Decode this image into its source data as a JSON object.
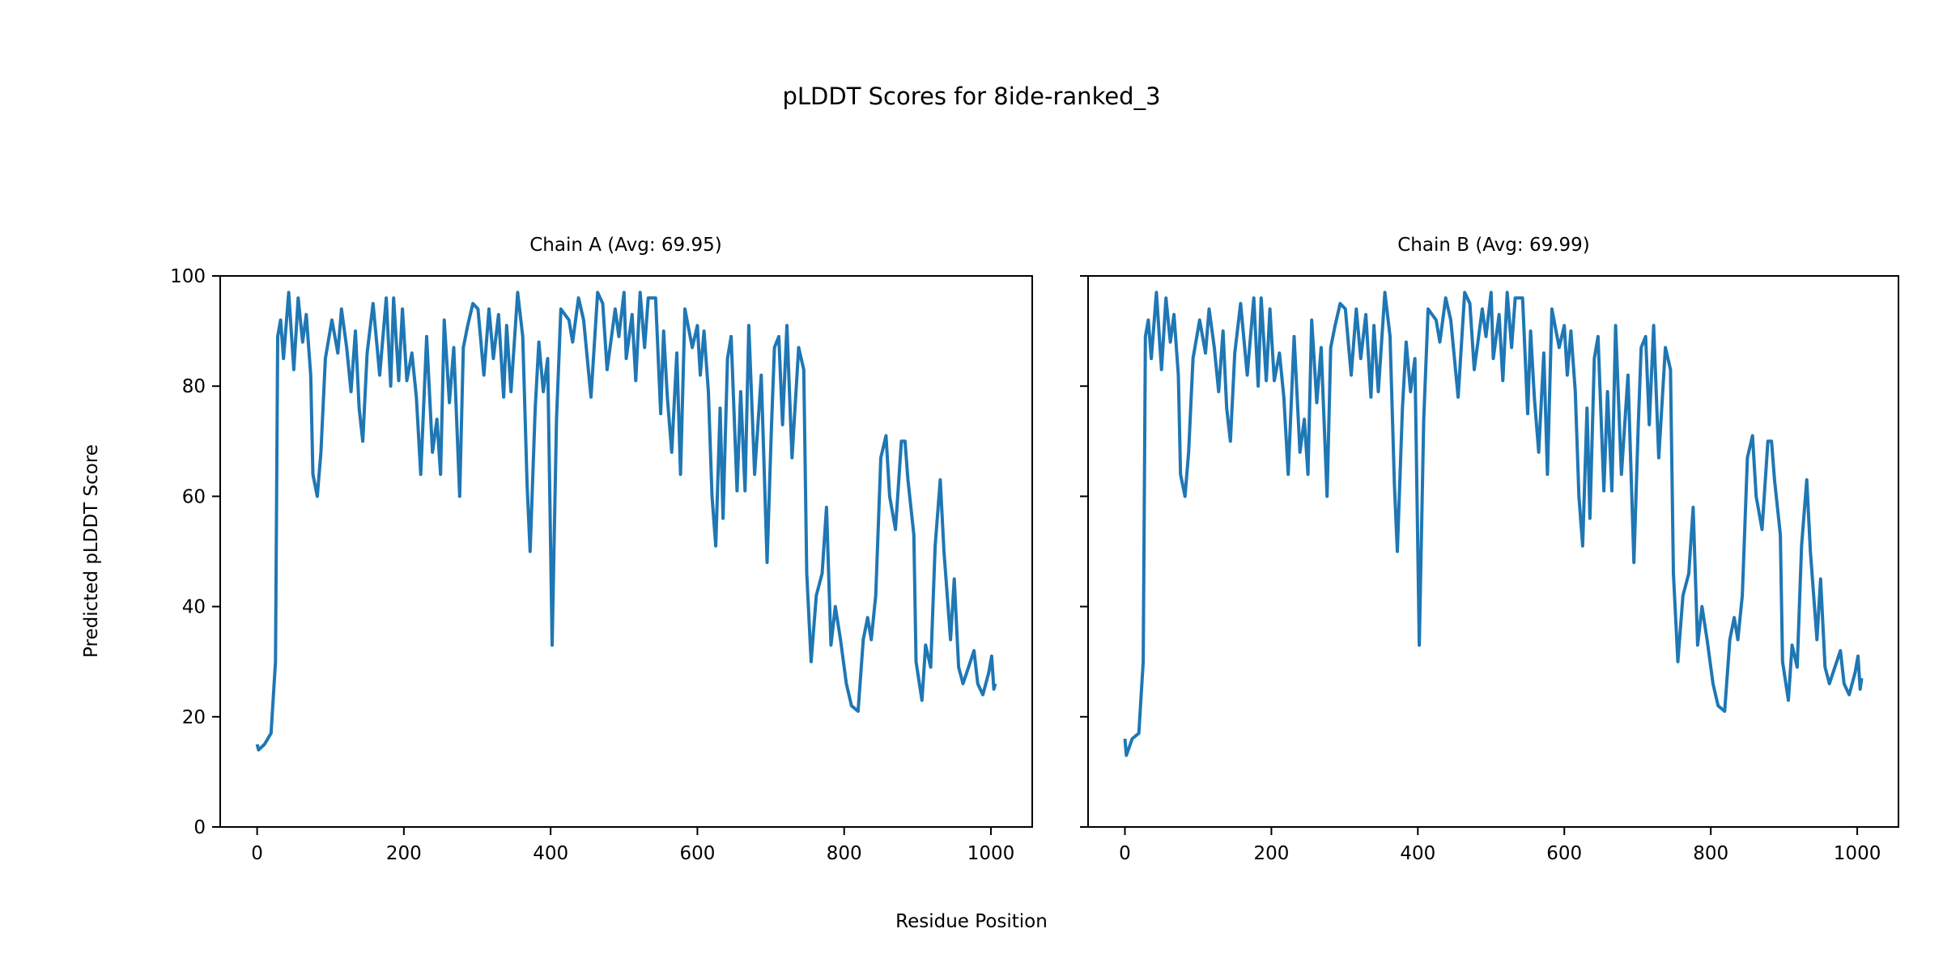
{
  "chart_data": {
    "type": "line",
    "title": "pLDDT Scores for 8ide-ranked_3",
    "xlabel": "Residue Position",
    "ylabel": "Predicted pLDDT Score",
    "line_color": "#1f77b4",
    "xlim": [
      -50.3,
      1056.3
    ],
    "ylim": [
      0,
      100
    ],
    "xticks": [
      0,
      200,
      400,
      600,
      800,
      1000
    ],
    "yticks": [
      0,
      20,
      40,
      60,
      80,
      100
    ],
    "panels": [
      {
        "title": "Chain A (Avg: 69.95)",
        "x": [
          0,
          2,
          10,
          19,
          25,
          28,
          32,
          36,
          43,
          50,
          56,
          62,
          67,
          73,
          76,
          82,
          87,
          93,
          102,
          110,
          115,
          122,
          128,
          134,
          139,
          144,
          150,
          158,
          167,
          176,
          182,
          186,
          193,
          198,
          204,
          211,
          217,
          223,
          231,
          239,
          245,
          250,
          255,
          262,
          268,
          276,
          281,
          287,
          294,
          301,
          309,
          316,
          322,
          329,
          336,
          340,
          346,
          355,
          362,
          368,
          372,
          379,
          384,
          390,
          396,
          402,
          408,
          414,
          425,
          430,
          438,
          445,
          455,
          464,
          471,
          477,
          488,
          493,
          500,
          503,
          511,
          516,
          522,
          528,
          533,
          543,
          550,
          554,
          559,
          565,
          572,
          577,
          583,
          593,
          600,
          604,
          609,
          615,
          620,
          625,
          631,
          635,
          641,
          646,
          654,
          659,
          665,
          670,
          678,
          687,
          695,
          701,
          705,
          711,
          716,
          722,
          729,
          738,
          745,
          749,
          755,
          762,
          770,
          776,
          782,
          788,
          795,
          803,
          810,
          819,
          826,
          832,
          837,
          843,
          850,
          857,
          862,
          870,
          878,
          883,
          887,
          895,
          898,
          906,
          911,
          918,
          924,
          931,
          936,
          945,
          950,
          956,
          962,
          967,
          977,
          982,
          989,
          997,
          1001,
          1004,
          1006
        ],
        "y": [
          15,
          14,
          15,
          17,
          30,
          89,
          92,
          85,
          97,
          83,
          96,
          88,
          93,
          82,
          64,
          60,
          68,
          85,
          92,
          86,
          94,
          87,
          79,
          90,
          76,
          70,
          86,
          95,
          82,
          96,
          80,
          96,
          81,
          94,
          81,
          86,
          78,
          64,
          89,
          68,
          74,
          64,
          92,
          77,
          87,
          60,
          87,
          91,
          95,
          94,
          82,
          94,
          85,
          93,
          78,
          91,
          79,
          97,
          89,
          62,
          50,
          76,
          88,
          79,
          85,
          33,
          74,
          94,
          92,
          88,
          96,
          92,
          78,
          97,
          95,
          83,
          94,
          89,
          97,
          85,
          93,
          81,
          97,
          87,
          96,
          96,
          75,
          90,
          78,
          68,
          86,
          64,
          94,
          87,
          91,
          82,
          90,
          79,
          60,
          51,
          76,
          56,
          85,
          89,
          61,
          79,
          61,
          91,
          64,
          82,
          48,
          73,
          87,
          89,
          73,
          91,
          67,
          87,
          83,
          46,
          30,
          42,
          46,
          58,
          33,
          40,
          34,
          26,
          22,
          21,
          34,
          38,
          34,
          42,
          67,
          71,
          60,
          54,
          70,
          70,
          63,
          53,
          30,
          23,
          33,
          29,
          51,
          63,
          50,
          34,
          45,
          29,
          26,
          28,
          32,
          26,
          24,
          28,
          31,
          25,
          26
        ]
      },
      {
        "title": "Chain B (Avg: 69.99)",
        "x": [
          0,
          2,
          10,
          19,
          25,
          28,
          32,
          36,
          43,
          50,
          56,
          62,
          67,
          73,
          76,
          82,
          87,
          93,
          102,
          110,
          115,
          122,
          128,
          134,
          139,
          144,
          150,
          158,
          167,
          176,
          182,
          186,
          193,
          198,
          204,
          211,
          217,
          223,
          231,
          239,
          245,
          250,
          255,
          262,
          268,
          276,
          281,
          287,
          294,
          301,
          309,
          316,
          322,
          329,
          336,
          340,
          346,
          355,
          362,
          368,
          372,
          379,
          384,
          390,
          396,
          402,
          408,
          414,
          425,
          430,
          438,
          445,
          455,
          464,
          471,
          477,
          488,
          493,
          500,
          503,
          511,
          516,
          522,
          528,
          533,
          543,
          550,
          554,
          559,
          565,
          572,
          577,
          583,
          593,
          600,
          604,
          609,
          615,
          620,
          625,
          631,
          635,
          641,
          646,
          654,
          659,
          665,
          670,
          678,
          687,
          695,
          701,
          705,
          711,
          716,
          722,
          729,
          738,
          745,
          749,
          755,
          762,
          770,
          776,
          782,
          788,
          795,
          803,
          810,
          819,
          826,
          832,
          837,
          843,
          850,
          857,
          862,
          870,
          878,
          883,
          887,
          895,
          898,
          906,
          911,
          918,
          924,
          931,
          936,
          945,
          950,
          956,
          962,
          967,
          977,
          982,
          989,
          997,
          1001,
          1004,
          1006
        ],
        "y": [
          16,
          13,
          16,
          17,
          30,
          89,
          92,
          85,
          97,
          83,
          96,
          88,
          93,
          82,
          64,
          60,
          68,
          85,
          92,
          86,
          94,
          87,
          79,
          90,
          76,
          70,
          86,
          95,
          82,
          96,
          80,
          96,
          81,
          94,
          81,
          86,
          78,
          64,
          89,
          68,
          74,
          64,
          92,
          77,
          87,
          60,
          87,
          91,
          95,
          94,
          82,
          94,
          85,
          93,
          78,
          91,
          79,
          97,
          89,
          62,
          50,
          76,
          88,
          79,
          85,
          33,
          74,
          94,
          92,
          88,
          96,
          92,
          78,
          97,
          95,
          83,
          94,
          89,
          97,
          85,
          93,
          81,
          97,
          87,
          96,
          96,
          75,
          90,
          78,
          68,
          86,
          64,
          94,
          87,
          91,
          82,
          90,
          79,
          60,
          51,
          76,
          56,
          85,
          89,
          61,
          79,
          61,
          91,
          64,
          82,
          48,
          73,
          87,
          89,
          73,
          91,
          67,
          87,
          83,
          46,
          30,
          42,
          46,
          58,
          33,
          40,
          34,
          26,
          22,
          21,
          34,
          38,
          34,
          42,
          67,
          71,
          60,
          54,
          70,
          70,
          63,
          53,
          30,
          23,
          33,
          29,
          51,
          63,
          50,
          34,
          45,
          29,
          26,
          28,
          32,
          26,
          24,
          28,
          31,
          25,
          27
        ]
      }
    ]
  }
}
